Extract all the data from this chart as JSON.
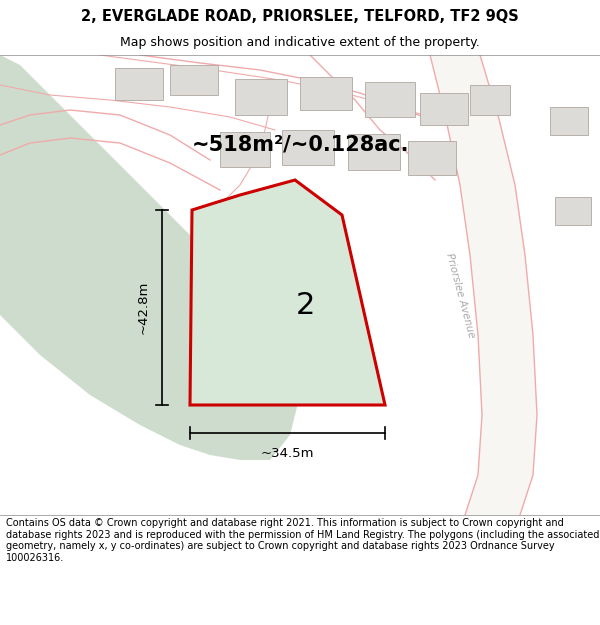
{
  "title_line1": "2, EVERGLADE ROAD, PRIORSLEE, TELFORD, TF2 9QS",
  "title_line2": "Map shows position and indicative extent of the property.",
  "footer_text": "Contains OS data © Crown copyright and database right 2021. This information is subject to Crown copyright and database rights 2023 and is reproduced with the permission of HM Land Registry. The polygons (including the associated geometry, namely x, y co-ordinates) are subject to Crown copyright and database rights 2023 Ordnance Survey 100026316.",
  "area_label": "~518m²/~0.128ac.",
  "plot_number": "2",
  "dim_height": "~42.8m",
  "dim_width": "~34.5m",
  "road_label": "Priorslee Avenue",
  "map_bg": "#f0eeeb",
  "plot_fill": "#d8e8d8",
  "plot_stroke": "#cc0000",
  "building_fill": "#dddbd7",
  "building_stroke": "#b0a8a0",
  "green_fill": "#cddccd",
  "road_line_color": "#f0aaaa",
  "dim_line_color": "#000000",
  "title_fontsize": 10.5,
  "subtitle_fontsize": 9,
  "footer_fontsize": 7,
  "area_fontsize": 15,
  "num_fontsize": 22
}
